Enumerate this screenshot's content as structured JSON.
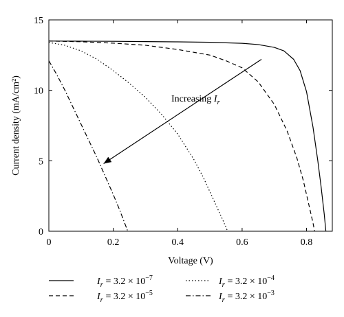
{
  "chart_data": {
    "type": "line",
    "xlabel": "Voltage (V)",
    "ylabel": "Current density (mA/cm²)",
    "xlim": [
      0,
      0.88
    ],
    "ylim": [
      0,
      15
    ],
    "x_ticks": [
      0,
      0.2,
      0.4,
      0.6,
      0.8
    ],
    "y_ticks": [
      0,
      5,
      10,
      15
    ],
    "x_tick_labels": [
      "0",
      "0.2",
      "0.4",
      "0.6",
      "0.8"
    ],
    "y_tick_labels": [
      "0",
      "5",
      "10",
      "15"
    ],
    "grid": false,
    "legend_position": "below plot, two columns",
    "annotation": {
      "text": "Increasing",
      "symbol": "I",
      "subscript": "r",
      "arrow_from": [
        0.66,
        12.2
      ],
      "arrow_to": [
        0.17,
        4.8
      ]
    },
    "series": [
      {
        "name": "I_r = 3.2 × 10^-7",
        "label_lhs": "I",
        "label_sub": "r",
        "label_mid": " = 3.2 × 10",
        "label_exp": "−7",
        "dash": "solid",
        "x": [
          0,
          0.1,
          0.2,
          0.3,
          0.4,
          0.5,
          0.6,
          0.65,
          0.7,
          0.73,
          0.76,
          0.78,
          0.8,
          0.82,
          0.835,
          0.845,
          0.855,
          0.86
        ],
        "y": [
          13.5,
          13.49,
          13.48,
          13.46,
          13.44,
          13.41,
          13.34,
          13.25,
          13.05,
          12.8,
          12.2,
          11.4,
          9.9,
          7.4,
          5.0,
          3.2,
          1.2,
          0
        ]
      },
      {
        "name": "I_r = 3.2 × 10^-5",
        "label_lhs": "I",
        "label_sub": "r",
        "label_mid": " = 3.2 × 10",
        "label_exp": "−5",
        "dash": "dashed",
        "x": [
          0,
          0.1,
          0.2,
          0.3,
          0.4,
          0.5,
          0.55,
          0.6,
          0.65,
          0.7,
          0.74,
          0.77,
          0.79,
          0.8,
          0.81,
          0.82,
          0.825
        ],
        "y": [
          13.5,
          13.45,
          13.35,
          13.2,
          12.9,
          12.5,
          12.1,
          11.6,
          10.6,
          9.0,
          7.1,
          5.2,
          3.6,
          2.6,
          1.6,
          0.6,
          0
        ]
      },
      {
        "name": "I_r = 3.2 × 10^-4",
        "label_lhs": "I",
        "label_sub": "r",
        "label_mid": " = 3.2 × 10",
        "label_exp": "−4",
        "dash": "dotted",
        "x": [
          0,
          0.05,
          0.1,
          0.15,
          0.2,
          0.25,
          0.3,
          0.35,
          0.4,
          0.45,
          0.48,
          0.5,
          0.52,
          0.54,
          0.555
        ],
        "y": [
          13.4,
          13.2,
          12.8,
          12.2,
          11.4,
          10.5,
          9.5,
          8.3,
          6.9,
          5.1,
          3.8,
          2.8,
          1.8,
          0.8,
          0
        ]
      },
      {
        "name": "I_r = 3.2 × 10^-3",
        "label_lhs": "I",
        "label_sub": "r",
        "label_mid": " = 3.2 × 10",
        "label_exp": "−3",
        "dash": "dashdot",
        "x": [
          0,
          0.025,
          0.05,
          0.075,
          0.1,
          0.125,
          0.15,
          0.175,
          0.2,
          0.22,
          0.235,
          0.245
        ],
        "y": [
          12.1,
          11.1,
          10.0,
          8.8,
          7.6,
          6.4,
          5.2,
          3.9,
          2.6,
          1.5,
          0.6,
          0
        ]
      }
    ]
  }
}
